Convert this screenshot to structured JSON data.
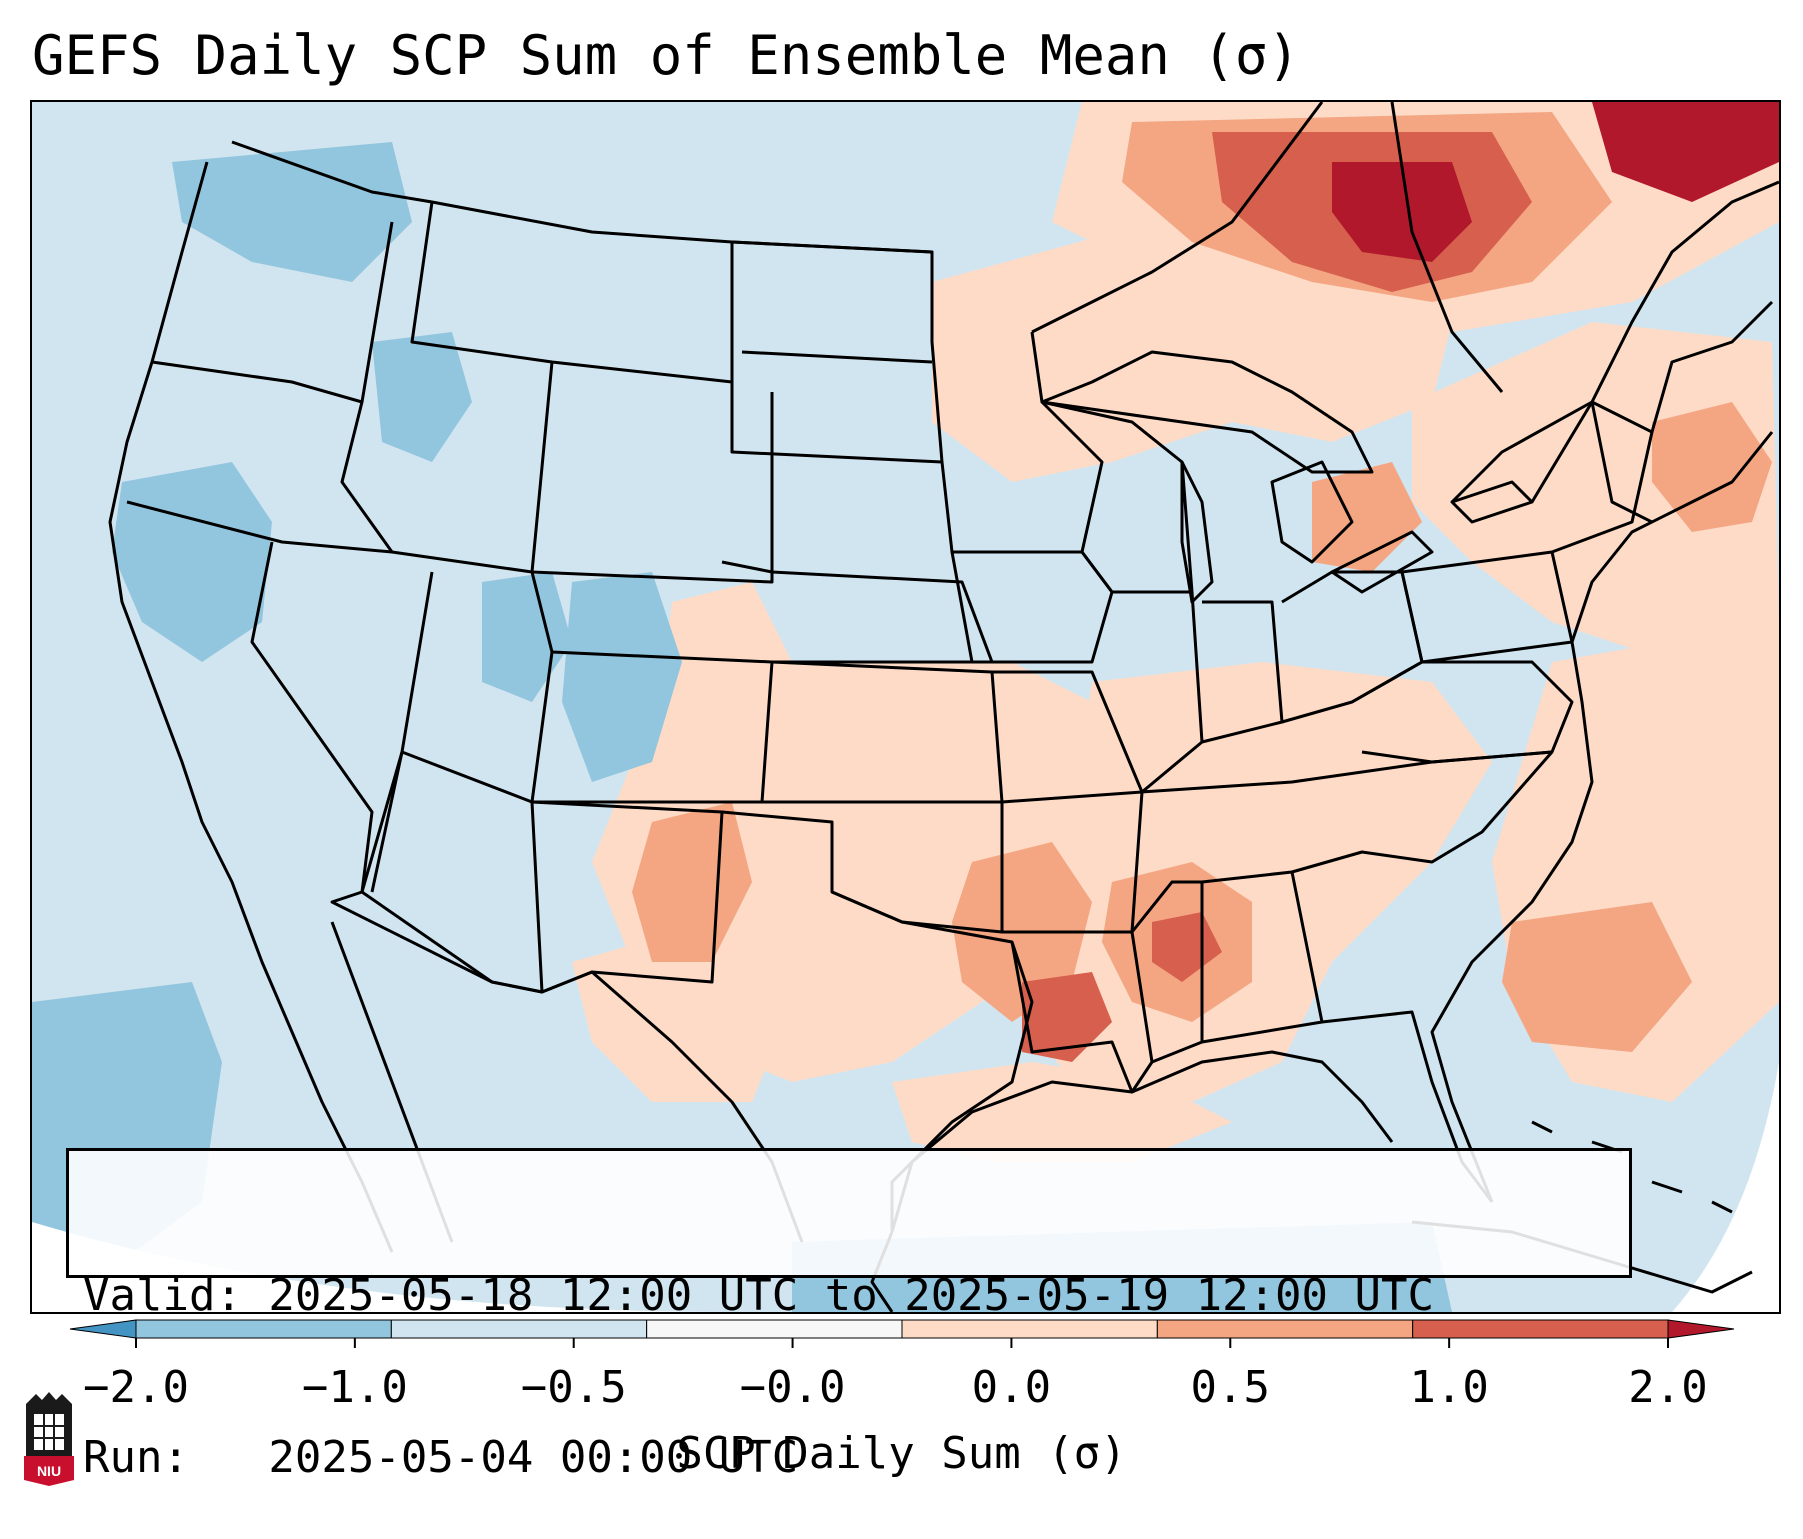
{
  "title": "GEFS Daily SCP Sum of Ensemble Mean (σ)",
  "info": {
    "valid_line": "Valid: 2025-05-18 12:00 UTC to 2025-05-19 12:00 UTC",
    "run_line": "Run:   2025-05-04 00:00 UTC"
  },
  "colorbar": {
    "label": "SCP Daily Sum (σ)",
    "ticks": [
      "−2.0",
      "−1.0",
      "−0.5",
      "−0.0",
      "0.0",
      "0.5",
      "1.0",
      "2.0"
    ],
    "colors": [
      "#4393c3",
      "#92c5de",
      "#d1e5f0",
      "#f7f7f7",
      "#fddbc7",
      "#f4a582",
      "#d6604d",
      "#b2182b"
    ],
    "extend": "both"
  },
  "logo": {
    "text": "NIU",
    "icon": "university-seal-icon"
  },
  "map": {
    "region": "Contiguous United States",
    "background_bin": "-0.5 to -0.0",
    "features": [
      "state-borders",
      "coastlines",
      "country-borders"
    ]
  }
}
